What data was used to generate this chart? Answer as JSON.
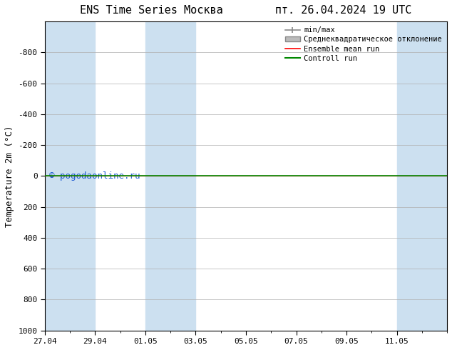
{
  "title_left": "ENS Time Series Москва",
  "title_right": "пт. 26.04.2024 19 UTC",
  "ylabel": "Temperature 2m (°C)",
  "ylim_bottom": 1000,
  "ylim_top": -1000,
  "yticks": [
    -800,
    -600,
    -400,
    -200,
    0,
    200,
    400,
    600,
    800,
    1000
  ],
  "xtick_labels": [
    "27.04",
    "29.04",
    "01.05",
    "03.05",
    "05.05",
    "07.05",
    "09.05",
    "11.05"
  ],
  "xtick_positions": [
    0,
    2,
    4,
    6,
    8,
    10,
    12,
    14
  ],
  "shaded_ranges": [
    [
      0,
      2
    ],
    [
      4,
      6
    ],
    [
      14,
      16
    ]
  ],
  "shaded_color": "#cce0f0",
  "background_color": "#ffffff",
  "grid_color": "#b0b0b0",
  "ensemble_mean_color": "#ff0000",
  "control_run_color": "#008800",
  "minmax_color": "#888888",
  "stdev_color": "#bbbbbb",
  "watermark": "© pogodaonline.ru",
  "watermark_color": "#0044cc",
  "legend_entries": [
    "min/max",
    "Среднеквадратическое отклонение",
    "Ensemble mean run",
    "Controll run"
  ],
  "legend_colors": [
    "#888888",
    "#bbbbbb",
    "#ff0000",
    "#008800"
  ],
  "total_days": 16,
  "xlim": [
    0,
    16
  ]
}
